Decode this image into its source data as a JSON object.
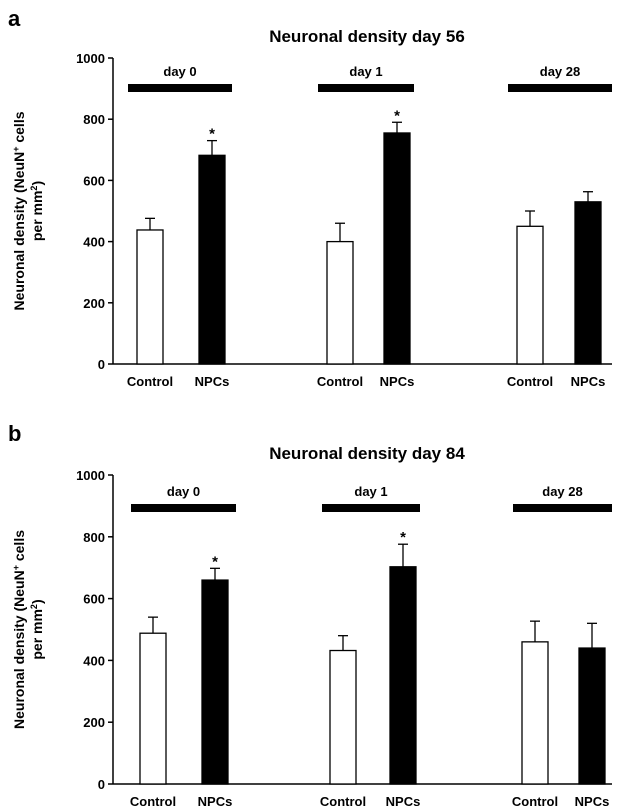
{
  "chart_data": [
    {
      "type": "bar",
      "panel": "a",
      "title": "Neuronal density day 56",
      "ylabel_line1": "Neuronal density (NeuN",
      "ylabel_sup": "+",
      "ylabel_line1b": " cells",
      "ylabel_line2": "per mm",
      "ylabel_sup2": "2",
      "ylabel_line2b": ")",
      "ylim": [
        0,
        1000
      ],
      "yticks": [
        0,
        200,
        400,
        600,
        800,
        1000
      ],
      "groups": [
        {
          "label": "day 0",
          "categories": [
            "Control",
            "NPCs"
          ],
          "values": [
            438,
            682
          ],
          "errors": [
            38,
            48
          ],
          "significant": [
            false,
            true
          ]
        },
        {
          "label": "day 1",
          "categories": [
            "Control",
            "NPCs"
          ],
          "values": [
            400,
            755
          ],
          "errors": [
            60,
            35
          ],
          "significant": [
            false,
            true
          ]
        },
        {
          "label": "day 28",
          "categories": [
            "Control",
            "NPCs"
          ],
          "values": [
            450,
            530
          ],
          "errors": [
            50,
            33
          ],
          "significant": [
            false,
            false
          ]
        }
      ],
      "series": [
        {
          "name": "Control",
          "color": "#ffffff"
        },
        {
          "name": "NPCs",
          "color": "#000000"
        }
      ],
      "significance_marker": "*"
    },
    {
      "type": "bar",
      "panel": "b",
      "title": "Neuronal density day 84",
      "ylabel_line1": "Neuronal density (NeuN",
      "ylabel_sup": "+",
      "ylabel_line1b": " cells",
      "ylabel_line2": "per mm",
      "ylabel_sup2": "2",
      "ylabel_line2b": ")",
      "ylim": [
        0,
        1000
      ],
      "yticks": [
        0,
        200,
        400,
        600,
        800,
        1000
      ],
      "groups": [
        {
          "label": "day 0",
          "categories": [
            "Control",
            "NPCs"
          ],
          "values": [
            488,
            660
          ],
          "errors": [
            52,
            38
          ],
          "significant": [
            false,
            true
          ]
        },
        {
          "label": "day 1",
          "categories": [
            "Control",
            "NPCs"
          ],
          "values": [
            432,
            703
          ],
          "errors": [
            48,
            73
          ],
          "significant": [
            false,
            true
          ]
        },
        {
          "label": "day 28",
          "categories": [
            "Control",
            "NPCs"
          ],
          "values": [
            460,
            440
          ],
          "errors": [
            67,
            80
          ],
          "significant": [
            false,
            false
          ]
        }
      ],
      "series": [
        {
          "name": "Control",
          "color": "#ffffff"
        },
        {
          "name": "NPCs",
          "color": "#000000"
        }
      ],
      "significance_marker": "*"
    }
  ]
}
